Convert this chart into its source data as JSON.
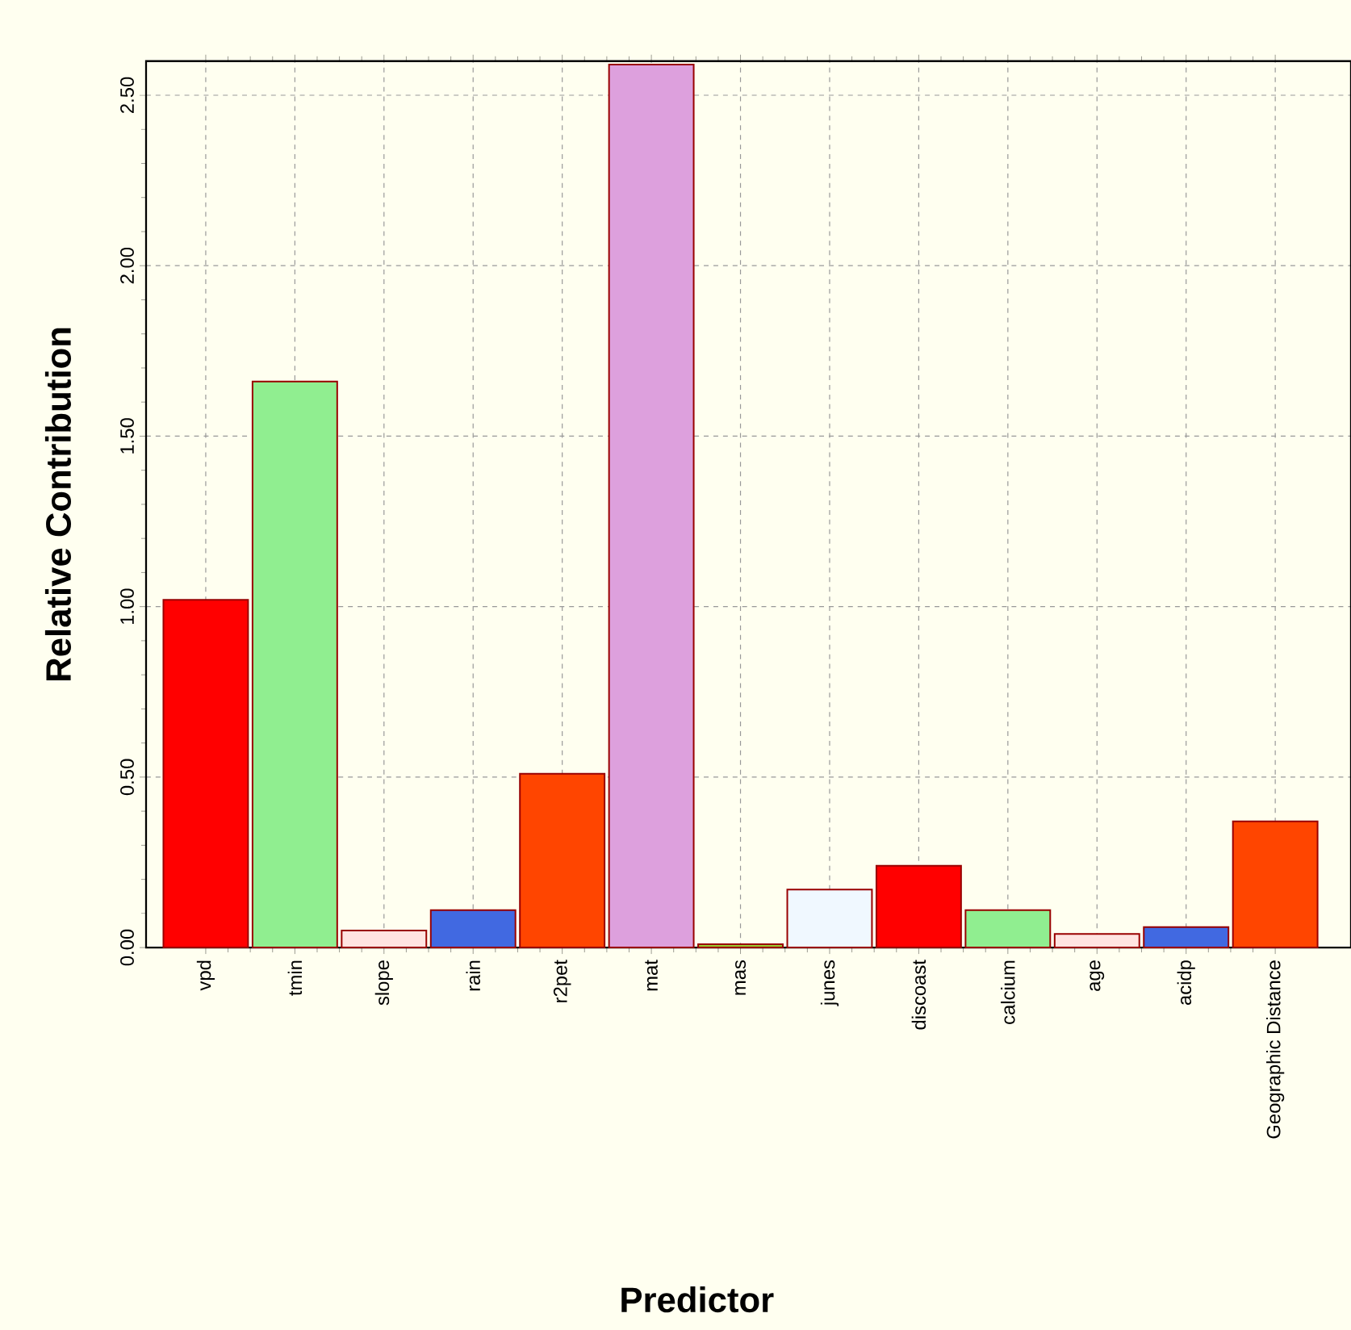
{
  "chart_data": {
    "type": "bar",
    "xlabel": "Predictor",
    "ylabel": "Relative Contribution",
    "categories": [
      "vpd",
      "tmin",
      "slope",
      "rain",
      "r2pet",
      "mat",
      "mas",
      "junes",
      "discoast",
      "calcium",
      "age",
      "acidp",
      "Geographic Distance"
    ],
    "values": [
      1.02,
      1.66,
      0.05,
      0.11,
      0.51,
      2.59,
      0.01,
      0.17,
      0.24,
      0.11,
      0.04,
      0.06,
      0.37
    ],
    "colors": [
      "#ff0000",
      "#90ee90",
      "#ffe4e1",
      "#4169e1",
      "#ff4500",
      "#dda0dd",
      "#9acd32",
      "#f0f8ff",
      "#ff0000",
      "#90ee90",
      "#ffe4e1",
      "#4169e1",
      "#ff4500"
    ],
    "ylim": [
      0,
      2.6
    ],
    "yticks": [
      {
        "value": 0,
        "label": "0.00"
      },
      {
        "value": 0.5,
        "label": "0.50"
      },
      {
        "value": 1,
        "label": "1.00"
      },
      {
        "value": 1.5,
        "label": "1.50"
      },
      {
        "value": 2,
        "label": "2.00"
      },
      {
        "value": 2.5,
        "label": "2.50"
      }
    ],
    "grid": true
  }
}
